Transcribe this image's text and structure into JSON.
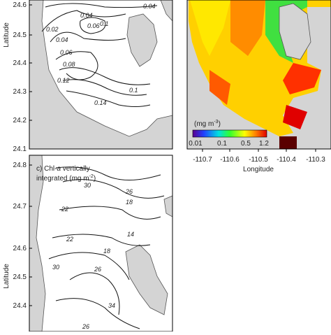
{
  "panel_a": {
    "yticks": [
      "24.6",
      "24.5",
      "24.4",
      "24.3",
      "24.2",
      "24.1"
    ],
    "y_label": "Latitude",
    "contour_labels": [
      "0.04",
      "0.02",
      "0.06",
      "0.1",
      "0.04",
      "0.04",
      "0.06",
      "0.08",
      "0.12",
      "0.1",
      "0.14"
    ]
  },
  "panel_b": {
    "colorbar_unit": "(mg m",
    "colorbar_unit_exp": "-3",
    "colorbar_unit_end": ")",
    "colorbar_ticks": [
      "0.01",
      "0.1",
      "0.5",
      "1.2"
    ],
    "xticks": [
      "-110.7",
      "-110.6",
      "-110.5",
      "-110.4",
      "-110.3"
    ],
    "x_label": "Longitude"
  },
  "panel_c": {
    "title_start": "c) Chl-",
    "title_italic": "a",
    "title_mid": " vertically",
    "title_line2": "integrated (mg m",
    "title_exp": "-2",
    "title_end": ")",
    "yticks": [
      "24.8",
      "24.7",
      "24.6",
      "24.5",
      "24.4"
    ],
    "y_label": "Latitude",
    "contour_labels": [
      "26",
      "30",
      "18",
      "22",
      "22",
      "14",
      "18",
      "30",
      "26",
      "34",
      "26"
    ]
  }
}
